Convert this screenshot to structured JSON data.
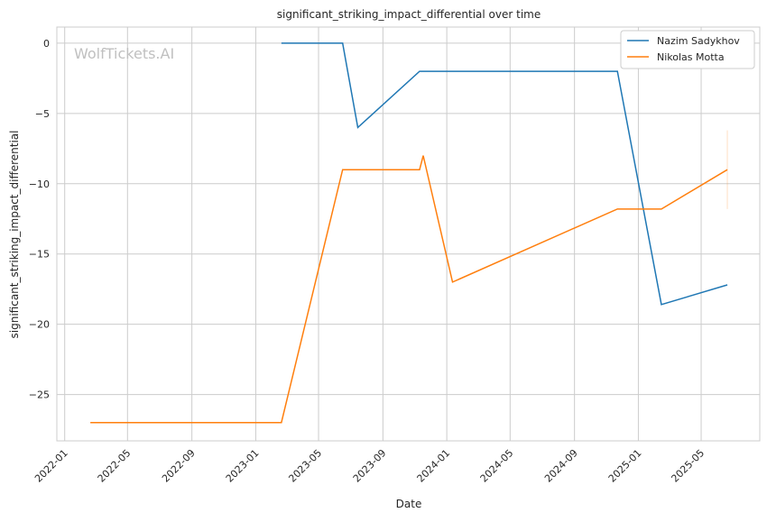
{
  "chart_data": {
    "type": "line",
    "title": "significant_striking_impact_differential over time",
    "xlabel": "Date",
    "ylabel": "significant_striking_impact_differential",
    "watermark": "WolfTickets.AI",
    "xlim": [
      "2021-12-17",
      "2025-08-21"
    ],
    "ylim": [
      -28.3,
      1.15
    ],
    "grid": true,
    "legend_position": "top-right",
    "x_ticks": [
      "2022-01",
      "2022-05",
      "2022-09",
      "2023-01",
      "2023-05",
      "2023-09",
      "2024-01",
      "2024-05",
      "2024-09",
      "2025-01",
      "2025-05"
    ],
    "y_ticks": [
      0,
      -5,
      -10,
      -15,
      -20,
      -25
    ],
    "series": [
      {
        "name": "Nazim Sadykhov",
        "color": "#1f77b4",
        "points": [
          [
            "2023-02-19",
            0
          ],
          [
            "2023-06-16",
            0
          ],
          [
            "2023-07-15",
            -6
          ],
          [
            "2023-11-10",
            -2
          ],
          [
            "2024-11-22",
            -2
          ],
          [
            "2025-02-14",
            -18.6
          ],
          [
            "2025-06-20",
            -17.2
          ]
        ]
      },
      {
        "name": "Nikolas Motta",
        "color": "#ff7f0e",
        "points": [
          [
            "2022-02-19",
            -27
          ],
          [
            "2023-02-19",
            -27
          ],
          [
            "2023-06-16",
            -9
          ],
          [
            "2023-11-10",
            -9
          ],
          [
            "2023-11-17",
            -8
          ],
          [
            "2024-01-12",
            -17
          ],
          [
            "2024-11-22",
            -11.8
          ],
          [
            "2025-02-14",
            -11.8
          ],
          [
            "2025-06-20",
            -9
          ]
        ],
        "error_bar": {
          "date": "2025-06-20",
          "low": -11.8,
          "high": -6.2
        }
      }
    ]
  }
}
